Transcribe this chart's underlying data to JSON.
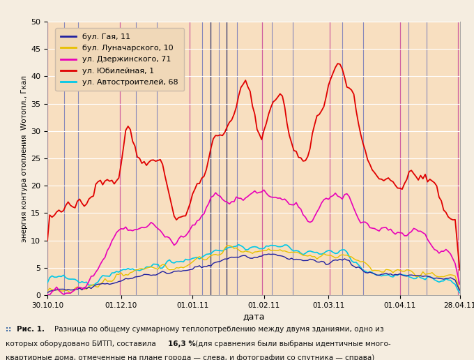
{
  "xlabel": "дата",
  "ylabel": "энергия контура отопления  Wотопл., Гкал",
  "ylim": [
    0,
    50
  ],
  "background_color": "#f8dfc0",
  "outer_background": "#f5ede0",
  "legend_bg": "#f0d8b8",
  "lines": {
    "bul_gaya": {
      "label": "бул. Гая, 11",
      "color": "#2020a0",
      "linewidth": 1.0
    },
    "bul_lun": {
      "label": "бул. Луначарского, 10",
      "color": "#e8c000",
      "linewidth": 1.0
    },
    "dzer": {
      "label": "ул. Дзержинского, 71",
      "color": "#e800b8",
      "linewidth": 1.2
    },
    "yub": {
      "label": "ул. Юбилейная, 1",
      "color": "#e00000",
      "linewidth": 1.3
    },
    "avto": {
      "label": "ул. Автостроителей, 68",
      "color": "#00c8e8",
      "linewidth": 1.2
    }
  },
  "xtick_labels": [
    "30.10.10",
    "01.12.10",
    "01.01.11",
    "01.02.11",
    "01.03.11",
    "01.04.11",
    "28.04.11"
  ],
  "caption_prefix": "::",
  "caption_bold": "Рис. 1. Разница по общему суммарному теплопотреблению между двумя зданиями, одно из",
  "caption_line2": "которых оборудовано БИТП, составила ",
  "caption_bold2": "16,3 %",
  "caption_rest": " (для сравнения были выбраны идентичные много-",
  "caption_line3": "квартирные дома, отмеченные на плане города — слева, и фотографии со спутника — справа)",
  "vlines_pink": [
    0.0,
    0.175,
    0.345,
    0.52,
    0.685,
    0.855,
    0.995
  ],
  "vlines_purple": [
    0.04,
    0.075,
    0.215,
    0.265,
    0.375,
    0.415,
    0.46,
    0.545,
    0.595,
    0.715,
    0.765,
    0.875,
    0.92
  ],
  "vlines_darkblue": [
    0.395,
    0.435
  ]
}
